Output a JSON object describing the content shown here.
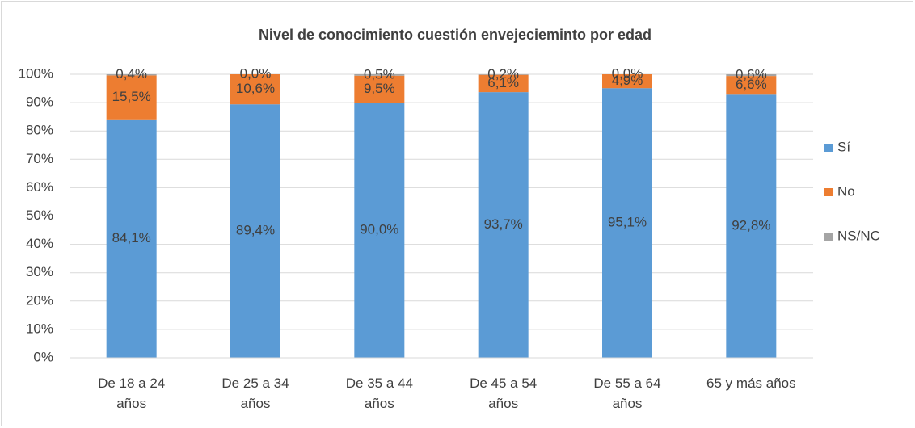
{
  "chart_data": {
    "type": "stacked_bar",
    "title": "Nivel de conocimiento cuestión envejecieminto por edad",
    "categories": [
      "De 18 a 24 años",
      "De 25 a 34 años",
      "De 35 a 44 años",
      "De 45 a 54 años",
      "De 55 a 64 años",
      "65 y más años"
    ],
    "series": [
      {
        "name": "Sí",
        "color": "#5b9bd5",
        "values": [
          84.1,
          89.4,
          90.0,
          93.7,
          95.1,
          92.8
        ],
        "value_labels": [
          "84,1%",
          "89,4%",
          "90,0%",
          "93,7%",
          "95,1%",
          "92,8%"
        ]
      },
      {
        "name": "No",
        "color": "#ed7d31",
        "values": [
          15.5,
          10.6,
          9.5,
          6.1,
          4.9,
          6.6
        ],
        "value_labels": [
          "15,5%",
          "10,6%",
          "9,5%",
          "6,1%",
          "4,9%",
          "6,6%"
        ]
      },
      {
        "name": "NS/NC",
        "color": "#a5a5a5",
        "values": [
          0.4,
          0.0,
          0.5,
          0.2,
          0.0,
          0.6
        ],
        "value_labels": [
          "0,4%",
          "0,0%",
          "0,5%",
          "0,2%",
          "0,0%",
          "0,6%"
        ]
      }
    ],
    "ylim": [
      0,
      100
    ],
    "yticks": [
      {
        "value": 0,
        "label": "0%"
      },
      {
        "value": 10,
        "label": "10%"
      },
      {
        "value": 20,
        "label": "20%"
      },
      {
        "value": 30,
        "label": "30%"
      },
      {
        "value": 40,
        "label": "40%"
      },
      {
        "value": 50,
        "label": "50%"
      },
      {
        "value": 60,
        "label": "60%"
      },
      {
        "value": 70,
        "label": "70%"
      },
      {
        "value": 80,
        "label": "80%"
      },
      {
        "value": 90,
        "label": "90%"
      },
      {
        "value": 100,
        "label": "100%"
      }
    ],
    "grid": true,
    "legend": "right"
  }
}
